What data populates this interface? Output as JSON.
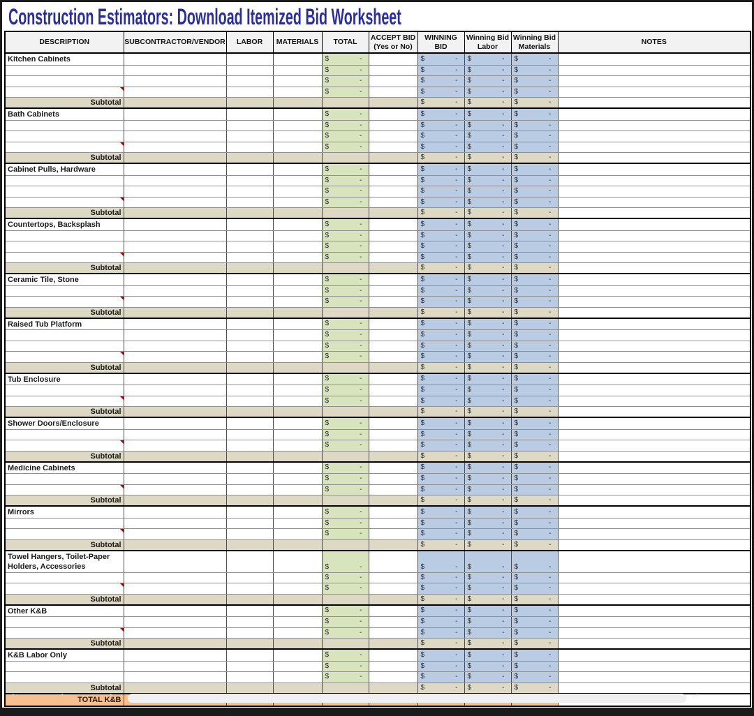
{
  "title": "Construction Estimators: Download Itemized Bid Worksheet",
  "columns": [
    {
      "key": "description",
      "label": "DESCRIPTION",
      "label2": ""
    },
    {
      "key": "vendor",
      "label": "SUBCONTRACTOR/VENDOR",
      "label2": ""
    },
    {
      "key": "labor",
      "label": "LABOR",
      "label2": ""
    },
    {
      "key": "materials",
      "label": "MATERIALS",
      "label2": ""
    },
    {
      "key": "total",
      "label": "TOTAL",
      "label2": ""
    },
    {
      "key": "accept",
      "label": "ACCEPT BID",
      "label2": "(Yes or No)"
    },
    {
      "key": "winning",
      "label": "WINNING",
      "label2": "BID"
    },
    {
      "key": "winLabor",
      "label": "Winning Bid",
      "label2": "Labor"
    },
    {
      "key": "winMaterials",
      "label": "Winning Bid",
      "label2": "Materials"
    },
    {
      "key": "notes",
      "label": "NOTES",
      "label2": ""
    }
  ],
  "money": {
    "currency": "$",
    "empty_value": "-"
  },
  "subtotal_label": "Subtotal",
  "grand_total_label": "TOTAL K&B",
  "sections": [
    {
      "name": "Kitchen Cabinets",
      "rows": 4,
      "comment_row": 4,
      "tall_first_row": false
    },
    {
      "name": "Bath Cabinets",
      "rows": 4,
      "comment_row": 4,
      "tall_first_row": false
    },
    {
      "name": "Cabinet Pulls, Hardware",
      "rows": 4,
      "comment_row": 4,
      "tall_first_row": false
    },
    {
      "name": "Countertops, Backsplash",
      "rows": 4,
      "comment_row": 4,
      "tall_first_row": false
    },
    {
      "name": "Ceramic Tile, Stone",
      "rows": 3,
      "comment_row": 3,
      "tall_first_row": false
    },
    {
      "name": "Raised Tub Platform",
      "rows": 4,
      "comment_row": 4,
      "tall_first_row": false
    },
    {
      "name": "Tub Enclosure",
      "rows": 3,
      "comment_row": 3,
      "tall_first_row": false
    },
    {
      "name": "Shower Doors/Enclosure",
      "rows": 3,
      "comment_row": 3,
      "tall_first_row": false
    },
    {
      "name": "Medicine Cabinets",
      "rows": 3,
      "comment_row": 3,
      "tall_first_row": false
    },
    {
      "name": "Mirrors",
      "rows": 3,
      "comment_row": 3,
      "tall_first_row": false
    },
    {
      "name": "Towel Hangers, Toilet-Paper Holders, Accessories",
      "rows": 3,
      "comment_row": 3,
      "tall_first_row": true
    },
    {
      "name": "Other K&B",
      "rows": 3,
      "comment_row": 3,
      "tall_first_row": false
    },
    {
      "name": "K&B Labor Only",
      "rows": 3,
      "comment_row": null,
      "tall_first_row": false
    }
  ],
  "money_columns": {
    "data_rows": [
      "total",
      "winning",
      "winLabor",
      "winMaterials"
    ],
    "subtotal_rows": [
      "winning",
      "winLabor",
      "winMaterials"
    ],
    "grand_total_row": [
      "winning",
      "winLabor",
      "winMaterials"
    ]
  },
  "colors": {
    "title_text": "#2b2e96",
    "header_background": "#f2f2f2",
    "total_column": "#d7e4bd",
    "winning_bid_columns": "#b9cce4",
    "subtotal_row": "#ddd9c4",
    "grand_total_row": "#fabf8f",
    "comment_indicator": "#b00000",
    "grid_line": "#909090",
    "frame_border": "#1b1b1b"
  }
}
